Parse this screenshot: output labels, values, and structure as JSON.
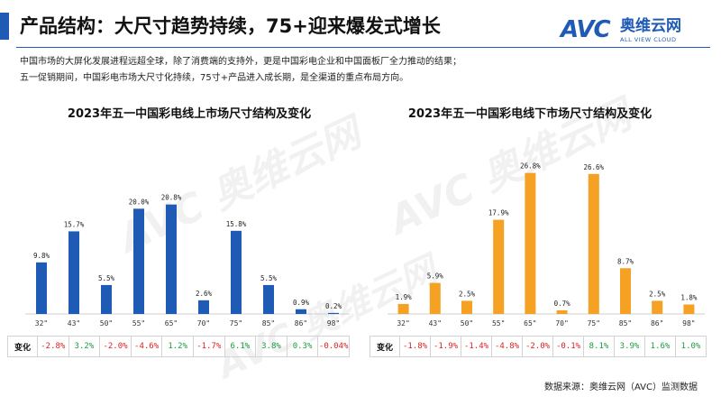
{
  "page": {
    "title": "产品结构：大尺寸趋势持续，75+迎来爆发式增长",
    "intro_lines": [
      "中国市场的大屏化发展进程远超全球，除了消费端的支持外，更是中国彩电企业和中国面板厂全力推动的结果；",
      "五一促销期间，中国彩电市场大尺寸化持续，75寸+产品进入成长期，是全渠道的重点布局方向。"
    ],
    "source": "数据来源：奥维云网（AVC）监测数据"
  },
  "logo": {
    "mark": "AVC",
    "cn": "奥维云网",
    "en": "ALL VIEW CLOUD"
  },
  "colors": {
    "online": "#1F5BB5",
    "offline": "#F4A124",
    "positive": "#1E9B3E",
    "negative": "#E02020",
    "accent": "#1F5BB5"
  },
  "change_row_label": "变化",
  "chart_data": [
    {
      "type": "bar",
      "title": "2023年五一中国彩电线上市场尺寸结构及变化",
      "categories": [
        "32\"",
        "43\"",
        "50\"",
        "55\"",
        "65\"",
        "70\"",
        "75\"",
        "85\"",
        "86\"",
        "98\""
      ],
      "values": [
        9.8,
        15.7,
        5.5,
        20.0,
        20.8,
        2.6,
        15.8,
        5.5,
        0.9,
        0.2
      ],
      "value_labels": [
        "9.8%",
        "15.7%",
        "5.5%",
        "20.0%",
        "20.8%",
        "2.6%",
        "15.8%",
        "5.5%",
        "0.9%",
        "0.2%"
      ],
      "change": [
        -2.8,
        3.2,
        -2.0,
        -4.6,
        1.2,
        -1.7,
        6.1,
        3.8,
        0.3,
        -0.04
      ],
      "change_labels": [
        "-2.8%",
        "3.2%",
        "-2.0%",
        "-4.6%",
        "1.2%",
        "-1.7%",
        "6.1%",
        "3.8%",
        "0.3%",
        "-0.04%"
      ],
      "color": "#1F5BB5",
      "ylim": [
        0,
        30
      ],
      "xlabel": "",
      "ylabel": ""
    },
    {
      "type": "bar",
      "title": "2023年五一中国彩电线下市场尺寸结构及变化",
      "categories": [
        "32\"",
        "43\"",
        "50\"",
        "55\"",
        "65\"",
        "70\"",
        "75\"",
        "85\"",
        "86\"",
        "98\""
      ],
      "values": [
        1.9,
        5.9,
        2.5,
        17.9,
        26.8,
        0.7,
        26.6,
        8.7,
        2.5,
        1.8
      ],
      "value_labels": [
        "1.9%",
        "5.9%",
        "2.5%",
        "17.9%",
        "26.8%",
        "0.7%",
        "26.6%",
        "8.7%",
        "2.5%",
        "1.8%"
      ],
      "change": [
        -1.8,
        -1.9,
        -1.4,
        -4.8,
        -2.0,
        -0.1,
        8.1,
        3.9,
        1.6,
        1.0
      ],
      "change_labels": [
        "-1.8%",
        "-1.9%",
        "-1.4%",
        "-4.8%",
        "-2.0%",
        "-0.1%",
        "8.1%",
        "3.9%",
        "1.6%",
        "1.0%"
      ],
      "color": "#F4A124",
      "ylim": [
        0,
        30
      ],
      "xlabel": "",
      "ylabel": ""
    }
  ]
}
